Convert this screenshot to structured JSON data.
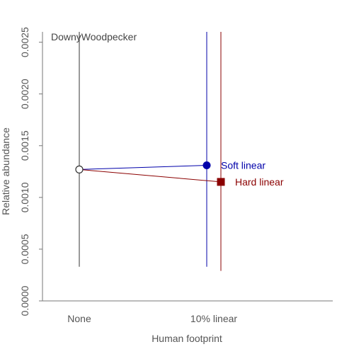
{
  "chart_data": {
    "type": "scatter",
    "title": "DownyWoodpecker",
    "xlabel": "Human footprint",
    "ylabel": "Relative abundance",
    "categories": [
      "None",
      "10% linear"
    ],
    "ylim": [
      0,
      0.0026
    ],
    "yticks": [
      "0.0000",
      "0.0005",
      "0.0010",
      "0.0015",
      "0.0020",
      "0.0025"
    ],
    "ytick_values": [
      0,
      0.0005,
      0.001,
      0.0015,
      0.002,
      0.0025
    ],
    "baseline": {
      "category": "None",
      "value": 0.00127,
      "lower": 0.00033,
      "upper": 0.0026,
      "color": "#333333"
    },
    "series": [
      {
        "name": "Soft linear",
        "category": "10% linear",
        "offset": -0.1,
        "value": 0.00131,
        "lower": 0.00033,
        "upper": 0.0026,
        "color": "#0000aa",
        "marker": "circle"
      },
      {
        "name": "Hard linear",
        "category": "10% linear",
        "offset": 0.1,
        "value": 0.00115,
        "lower": 0.00029,
        "upper": 0.0026,
        "color": "#8b0000",
        "marker": "square"
      }
    ],
    "grid": false,
    "legend": "right"
  }
}
